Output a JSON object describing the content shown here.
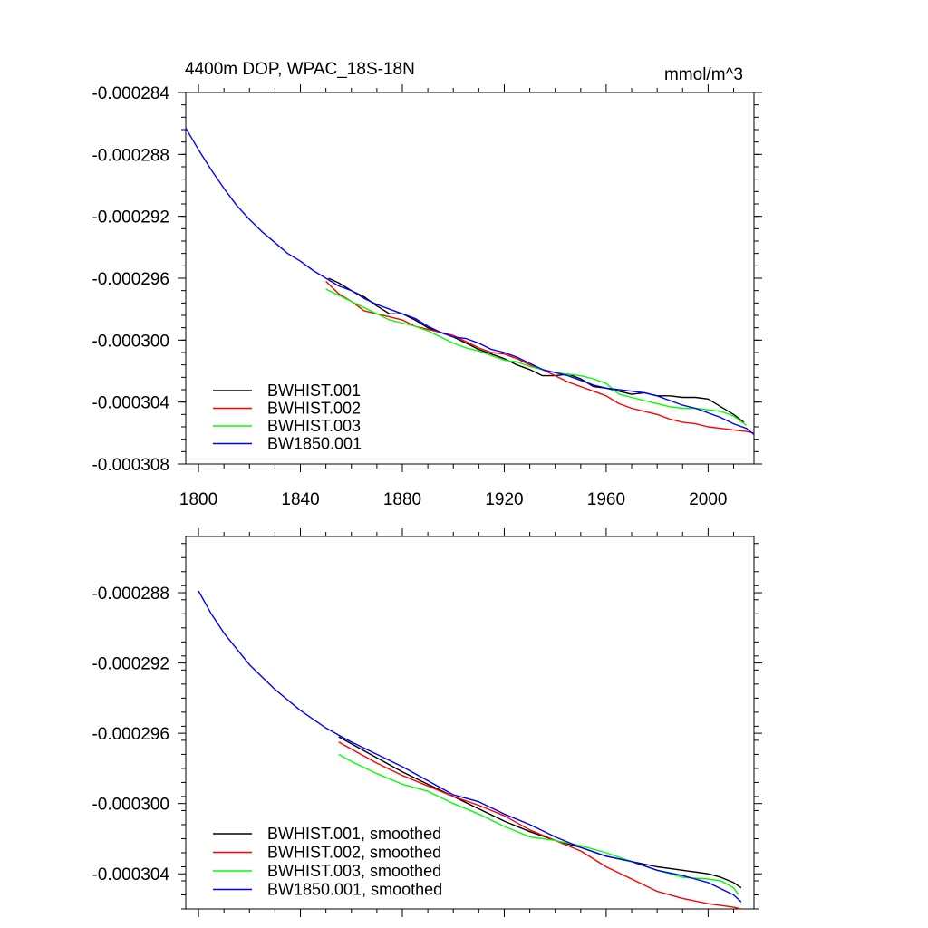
{
  "chart_data": [
    {
      "type": "line",
      "title": "4400m DOP, WPAC_18S-18N",
      "units": "mmol/m^3",
      "xlim": [
        1795,
        2018
      ],
      "ylim": [
        -0.000308,
        -0.000284
      ],
      "xticks": [
        "1800",
        "1840",
        "1880",
        "1920",
        "1960",
        "2000"
      ],
      "yticks": [
        "-0.000284",
        "-0.000288",
        "-0.000292",
        "-0.000296",
        "-0.000300",
        "-0.000304",
        "-0.000308"
      ],
      "legend_position": "bottom-left",
      "grid": false,
      "series": [
        {
          "name": "BWHIST.001",
          "color": "#000000",
          "x": [
            1851,
            1855,
            1860,
            1865,
            1870,
            1875,
            1880,
            1885,
            1890,
            1895,
            1900,
            1905,
            1910,
            1915,
            1920,
            1925,
            1930,
            1935,
            1940,
            1945,
            1950,
            1955,
            1960,
            1965,
            1970,
            1975,
            1980,
            1985,
            1990,
            1995,
            2000,
            2005,
            2010,
            2014
          ],
          "y": [
            -0.000296,
            -0.0002963,
            -0.0002968,
            -0.0002972,
            -0.0002978,
            -0.0002983,
            -0.0002983,
            -0.0002987,
            -0.0002992,
            -0.0002995,
            -0.0002998,
            -0.0003002,
            -0.0003006,
            -0.0003009,
            -0.0003012,
            -0.0003016,
            -0.0003019,
            -0.0003023,
            -0.0003023,
            -0.0003022,
            -0.0003025,
            -0.000303,
            -0.0003031,
            -0.0003033,
            -0.0003035,
            -0.0003034,
            -0.0003036,
            -0.0003036,
            -0.0003037,
            -0.0003037,
            -0.0003038,
            -0.0003043,
            -0.0003048,
            -0.0003053
          ]
        },
        {
          "name": "BWHIST.002",
          "color": "#ff0000",
          "x": [
            1850,
            1855,
            1860,
            1865,
            1870,
            1875,
            1880,
            1885,
            1890,
            1895,
            1900,
            1905,
            1910,
            1915,
            1920,
            1925,
            1930,
            1935,
            1940,
            1945,
            1950,
            1955,
            1960,
            1965,
            1970,
            1975,
            1980,
            1985,
            1990,
            1995,
            2000,
            2005,
            2010,
            2015,
            2018
          ],
          "y": [
            -0.0002962,
            -0.000297,
            -0.0002975,
            -0.0002981,
            -0.0002983,
            -0.0002985,
            -0.0002987,
            -0.0002991,
            -0.0002993,
            -0.0002995,
            -0.0002997,
            -0.0003001,
            -0.0003005,
            -0.0003008,
            -0.0003009,
            -0.0003012,
            -0.0003016,
            -0.0003019,
            -0.0003023,
            -0.0003027,
            -0.000303,
            -0.0003033,
            -0.0003036,
            -0.0003041,
            -0.0003044,
            -0.0003046,
            -0.0003048,
            -0.0003051,
            -0.0003053,
            -0.0003054,
            -0.0003056,
            -0.0003057,
            -0.0003058,
            -0.0003059,
            -0.000306
          ]
        },
        {
          "name": "BWHIST.003",
          "color": "#00ff00",
          "x": [
            1850,
            1855,
            1860,
            1865,
            1870,
            1875,
            1880,
            1885,
            1890,
            1895,
            1900,
            1905,
            1910,
            1915,
            1920,
            1925,
            1930,
            1935,
            1940,
            1945,
            1950,
            1955,
            1960,
            1965,
            1970,
            1975,
            1980,
            1985,
            1990,
            1995,
            2000,
            2005,
            2010,
            2015
          ],
          "y": [
            -0.0002967,
            -0.0002971,
            -0.0002975,
            -0.0002979,
            -0.0002983,
            -0.0002987,
            -0.0002989,
            -0.0002991,
            -0.0002994,
            -0.0002998,
            -0.0003002,
            -0.0003005,
            -0.0003007,
            -0.000301,
            -0.0003013,
            -0.0003014,
            -0.0003017,
            -0.0003019,
            -0.0003021,
            -0.0003022,
            -0.0003023,
            -0.0003025,
            -0.0003028,
            -0.0003035,
            -0.0003037,
            -0.0003039,
            -0.0003041,
            -0.0003043,
            -0.0003044,
            -0.0003044,
            -0.0003045,
            -0.0003046,
            -0.0003049,
            -0.0003055
          ]
        },
        {
          "name": "BW1850.001",
          "color": "#0000ff",
          "x": [
            1795,
            1800,
            1805,
            1810,
            1815,
            1820,
            1825,
            1830,
            1835,
            1840,
            1845,
            1850,
            1855,
            1860,
            1865,
            1870,
            1875,
            1880,
            1885,
            1890,
            1895,
            1900,
            1905,
            1910,
            1915,
            1920,
            1925,
            1930,
            1935,
            1940,
            1945,
            1950,
            1955,
            1960,
            1965,
            1970,
            1975,
            1980,
            1985,
            1990,
            1995,
            2000,
            2005,
            2010,
            2015,
            2018
          ],
          "y": [
            -0.0002863,
            -0.0002877,
            -0.000289,
            -0.0002902,
            -0.0002913,
            -0.0002922,
            -0.000293,
            -0.0002937,
            -0.0002944,
            -0.0002949,
            -0.0002955,
            -0.000296,
            -0.0002965,
            -0.0002968,
            -0.0002973,
            -0.0002977,
            -0.000298,
            -0.0002983,
            -0.0002986,
            -0.0002991,
            -0.0002995,
            -0.0002998,
            -0.0002999,
            -0.0003002,
            -0.0003006,
            -0.0003008,
            -0.0003011,
            -0.0003015,
            -0.0003019,
            -0.0003021,
            -0.0003023,
            -0.0003026,
            -0.0003029,
            -0.0003031,
            -0.0003032,
            -0.0003033,
            -0.0003034,
            -0.0003036,
            -0.0003039,
            -0.0003042,
            -0.0003044,
            -0.0003047,
            -0.000305,
            -0.0003054,
            -0.0003057,
            -0.0003061
          ]
        }
      ]
    },
    {
      "type": "line",
      "xlim": [
        1795,
        2018
      ],
      "ylim": [
        -0.000306,
        -0.0002848
      ],
      "xticks": [],
      "yticks": [
        "-0.000288",
        "-0.000292",
        "-0.000296",
        "-0.000300",
        "-0.000304"
      ],
      "legend_position": "bottom-left",
      "grid": false,
      "series": [
        {
          "name": "BWHIST.001, smoothed",
          "color": "#000000",
          "x": [
            1855,
            1860,
            1870,
            1880,
            1890,
            1900,
            1910,
            1920,
            1930,
            1940,
            1950,
            1960,
            1970,
            1980,
            1990,
            2000,
            2005,
            2010,
            2013
          ],
          "y": [
            -0.0002962,
            -0.0002966,
            -0.0002974,
            -0.0002982,
            -0.0002989,
            -0.0002996,
            -0.0003003,
            -0.000301,
            -0.0003016,
            -0.0003021,
            -0.0003025,
            -0.000303,
            -0.0003033,
            -0.0003036,
            -0.0003038,
            -0.000304,
            -0.0003042,
            -0.0003045,
            -0.0003048
          ]
        },
        {
          "name": "BWHIST.002, smoothed",
          "color": "#ff0000",
          "x": [
            1855,
            1860,
            1870,
            1880,
            1890,
            1900,
            1910,
            1920,
            1930,
            1940,
            1950,
            1960,
            1970,
            1980,
            1990,
            2000,
            2010,
            2013
          ],
          "y": [
            -0.0002965,
            -0.0002969,
            -0.0002977,
            -0.0002984,
            -0.000299,
            -0.0002996,
            -0.0003001,
            -0.0003007,
            -0.0003015,
            -0.0003021,
            -0.0003027,
            -0.0003036,
            -0.0003043,
            -0.000305,
            -0.0003054,
            -0.0003057,
            -0.0003059,
            -0.000306
          ]
        },
        {
          "name": "BWHIST.003, smoothed",
          "color": "#00ff00",
          "x": [
            1855,
            1860,
            1870,
            1880,
            1890,
            1900,
            1910,
            1920,
            1930,
            1940,
            1950,
            1960,
            1970,
            1980,
            1990,
            2000,
            2005,
            2010,
            2012
          ],
          "y": [
            -0.0002972,
            -0.0002976,
            -0.0002983,
            -0.0002989,
            -0.0002993,
            -0.0003,
            -0.0003006,
            -0.0003013,
            -0.0003019,
            -0.0003021,
            -0.0003024,
            -0.0003028,
            -0.0003033,
            -0.0003038,
            -0.0003042,
            -0.0003043,
            -0.0003044,
            -0.0003048,
            -0.0003052
          ]
        },
        {
          "name": "BW1850.001, smoothed",
          "color": "#0000ff",
          "x": [
            1800,
            1805,
            1810,
            1815,
            1820,
            1830,
            1840,
            1850,
            1855,
            1860,
            1870,
            1880,
            1890,
            1900,
            1910,
            1920,
            1930,
            1940,
            1950,
            1960,
            1970,
            1980,
            1990,
            2000,
            2010,
            2013
          ],
          "y": [
            -0.0002879,
            -0.0002892,
            -0.0002903,
            -0.0002912,
            -0.0002921,
            -0.0002935,
            -0.0002947,
            -0.0002957,
            -0.0002961,
            -0.0002965,
            -0.0002972,
            -0.0002979,
            -0.0002987,
            -0.0002995,
            -0.0002999,
            -0.0003006,
            -0.0003012,
            -0.0003019,
            -0.0003025,
            -0.000303,
            -0.0003033,
            -0.0003038,
            -0.0003041,
            -0.0003045,
            -0.0003052,
            -0.0003056
          ]
        }
      ]
    }
  ]
}
